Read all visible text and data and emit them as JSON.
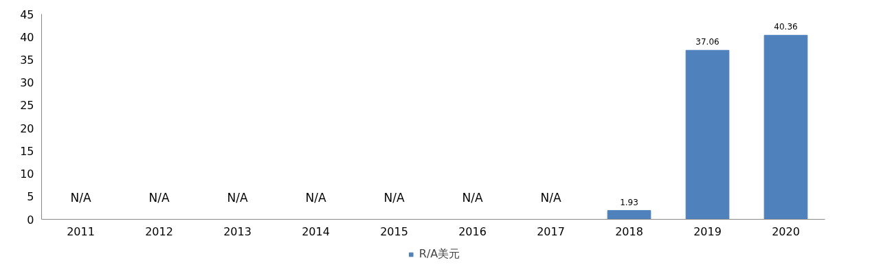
{
  "chart_data": {
    "type": "bar",
    "categories": [
      "2011",
      "2012",
      "2013",
      "2014",
      "2015",
      "2016",
      "2017",
      "2018",
      "2019",
      "2020"
    ],
    "series": [
      {
        "name": "R/A美元",
        "color": "#4f81bd",
        "values": [
          null,
          null,
          null,
          null,
          null,
          null,
          null,
          1.93,
          37.06,
          40.36
        ]
      }
    ],
    "value_labels": [
      "N/A",
      "N/A",
      "N/A",
      "N/A",
      "N/A",
      "N/A",
      "N/A",
      "1.93",
      "37.06",
      "40.36"
    ],
    "ylim": [
      0,
      45
    ],
    "yticks": [
      0,
      5,
      10,
      15,
      20,
      25,
      30,
      35,
      40,
      45
    ],
    "grid": false,
    "legend": "bottom"
  }
}
